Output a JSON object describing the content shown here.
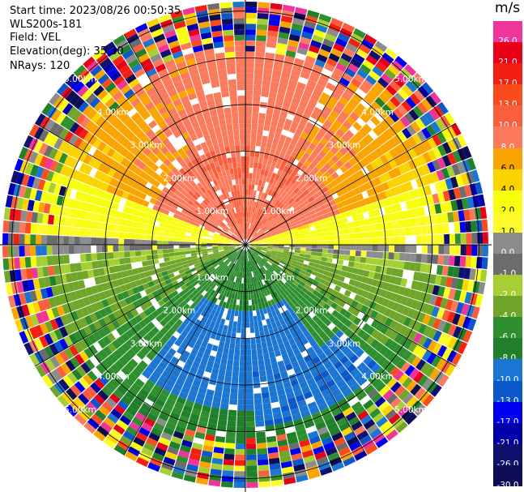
{
  "header": {
    "start_time": "Start time: 2023/08/26 00:50:35",
    "instrument": "WLS200s-181",
    "field": "Field: VEL",
    "elevation": "Elevation(deg): 35.30",
    "nrays": "NRays: 120"
  },
  "colorbar": {
    "unit": "m/s",
    "bins": [
      {
        "label": "26.0",
        "color": "#f0359a"
      },
      {
        "label": "21.0",
        "color": "#e8001a"
      },
      {
        "label": "17.0",
        "color": "#f21f12"
      },
      {
        "label": "13.0",
        "color": "#fa4b1c"
      },
      {
        "label": "10.0",
        "color": "#fb5e3c"
      },
      {
        "label": "8.0",
        "color": "#fc7a5c"
      },
      {
        "label": "6.0",
        "color": "#f9a400"
      },
      {
        "label": "4.0",
        "color": "#fbd400"
      },
      {
        "label": "2.0",
        "color": "#f7ff0f"
      },
      {
        "label": "1.0",
        "color": "#fffb2a"
      },
      {
        "label": "0.0",
        "color": "#8c8c8c"
      },
      {
        "label": "-1.0",
        "color": "#6c6c6c"
      },
      {
        "label": "-2.0",
        "color": "#a5cf33"
      },
      {
        "label": "-4.0",
        "color": "#6fa629"
      },
      {
        "label": "-6.0",
        "color": "#2f8f2f"
      },
      {
        "label": "-8.0",
        "color": "#1f7f2a"
      },
      {
        "label": "-10.0",
        "color": "#1b75d2"
      },
      {
        "label": "-13.0",
        "color": "#0c57c9"
      },
      {
        "label": "-17.0",
        "color": "#0000f0"
      },
      {
        "label": "-21.0",
        "color": "#0000aa"
      },
      {
        "label": "-26.0",
        "color": "#10106f"
      },
      {
        "label": "-30.0",
        "color": "#0d0d55"
      }
    ]
  },
  "chart_data": {
    "type": "heatmap",
    "subtype": "polar-ppi",
    "field": "VEL",
    "unit": "m/s",
    "nrays": 120,
    "range_rings": [
      "1.00km",
      "2.00km",
      "3.00km",
      "4.00km",
      "5.00km"
    ],
    "range_ring_km": [
      1,
      2,
      3,
      4,
      5
    ],
    "spoke_angles_deg": [
      0,
      30,
      60,
      90,
      120,
      150,
      180,
      210,
      240,
      270,
      300,
      330
    ],
    "max_range_km": 5.2,
    "sector_description": {
      "north_near": "salmon (8 to 10)",
      "north_far": "orange (4 to 8)",
      "east_west_band": "yellow (1 to 4) then gray (-1 to 1)",
      "south": "green (-2 to -8)",
      "south_center": "blue (-8 to -13)",
      "outer_ring": "noise (all colors)"
    },
    "colorbar_range": [
      -30,
      26
    ],
    "grid": true
  }
}
